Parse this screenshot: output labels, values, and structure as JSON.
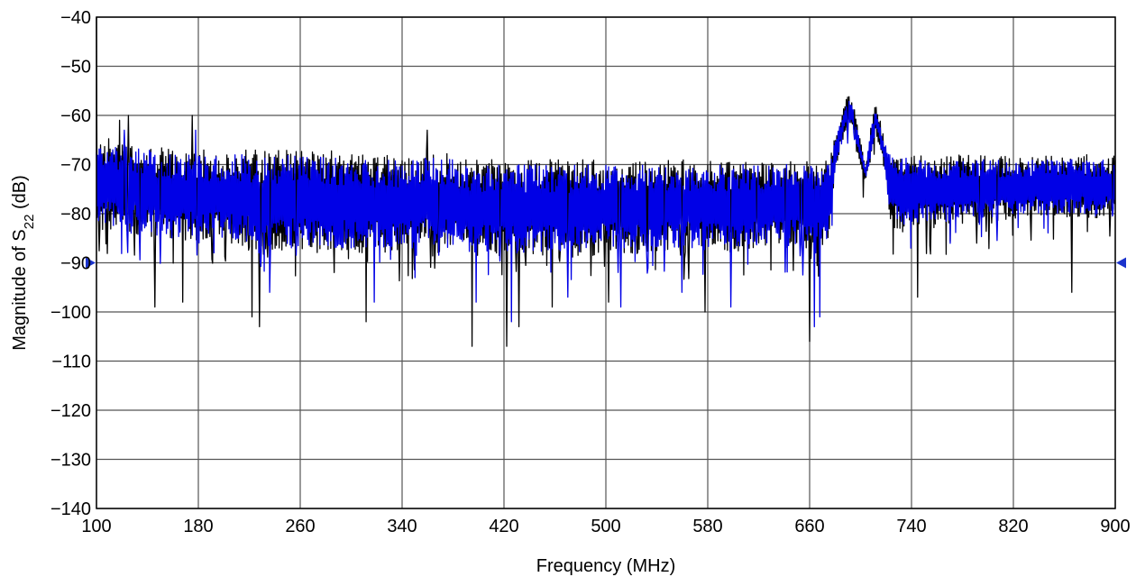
{
  "chart_data": {
    "type": "line",
    "title": "",
    "xlabel": "Frequency (MHz)",
    "ylabel": {
      "prefix": "Magnitude of S",
      "subscript": "22",
      "suffix": " (dB)"
    },
    "xlim": [
      100,
      900
    ],
    "ylim": [
      -140,
      -40
    ],
    "x_ticks": [
      100,
      180,
      260,
      340,
      420,
      500,
      580,
      660,
      740,
      820,
      900
    ],
    "x_tick_labels": [
      "100",
      "180",
      "260",
      "340",
      "420",
      "500",
      "580",
      "660",
      "740",
      "820",
      "900"
    ],
    "y_ticks": [
      -40,
      -50,
      -60,
      -70,
      -80,
      -90,
      -100,
      -110,
      -120,
      -130,
      -140
    ],
    "y_tick_labels": [
      "−40",
      "−50",
      "−60",
      "−70",
      "−80",
      "−90",
      "−100",
      "−110",
      "−120",
      "−130",
      "−140"
    ],
    "grid": true,
    "legend": "none",
    "reference_level": -90,
    "colors": {
      "front": "#0000e6",
      "back": "#000000",
      "grid": "#555555",
      "marker": "#1a33cc"
    },
    "series": [
      {
        "color": "#000000",
        "envelope": {
          "x": [
            100,
            120,
            140,
            160,
            180,
            200,
            220,
            240,
            260,
            280,
            300,
            320,
            340,
            360,
            380,
            400,
            420,
            440,
            460,
            480,
            500,
            520,
            540,
            560,
            580,
            600,
            620,
            640,
            660,
            675,
            680,
            686,
            690,
            694,
            700,
            704,
            708,
            712,
            718,
            722,
            726,
            730,
            740,
            760,
            780,
            800,
            820,
            840,
            860,
            880,
            900
          ],
          "upper": [
            -64,
            -65,
            -66,
            -67,
            -67,
            -67,
            -67,
            -67,
            -67,
            -67,
            -68,
            -68,
            -68,
            -67,
            -68,
            -69,
            -69,
            -69,
            -69,
            -69,
            -69,
            -69,
            -69,
            -69,
            -69,
            -69,
            -69,
            -69,
            -69,
            -69,
            -64,
            -59,
            -55,
            -57,
            -65,
            -70,
            -62,
            -57,
            -64,
            -66,
            -67,
            -67,
            -68,
            -68,
            -68,
            -68,
            -68,
            -68,
            -68,
            -68,
            -68
          ],
          "lower": [
            -83,
            -84,
            -85,
            -86,
            -86,
            -86,
            -87,
            -88,
            -88,
            -88,
            -88,
            -88,
            -88,
            -88,
            -88,
            -89,
            -89,
            -89,
            -89,
            -89,
            -88,
            -88,
            -88,
            -88,
            -88,
            -88,
            -87,
            -87,
            -88,
            -86,
            -72,
            -65,
            -62,
            -64,
            -70,
            -74,
            -70,
            -64,
            -70,
            -80,
            -83,
            -84,
            -83,
            -83,
            -82,
            -82,
            -81,
            -81,
            -81,
            -81,
            -81
          ],
          "spikes": [
            [
              100,
              -40
            ],
            [
              118,
              -61
            ],
            [
              125,
              -60
            ],
            [
              175,
              -60
            ],
            [
              360,
              -63
            ],
            [
              146,
              -99
            ],
            [
              168,
              -98
            ],
            [
              222,
              -101
            ],
            [
              228,
              -103
            ],
            [
              312,
              -102
            ],
            [
              395,
              -107
            ],
            [
              422,
              -107
            ],
            [
              432,
              -103
            ],
            [
              458,
              -99
            ],
            [
              502,
              -98
            ],
            [
              578,
              -100
            ],
            [
              660,
              -106
            ],
            [
              745,
              -97
            ],
            [
              866,
              -96
            ]
          ]
        }
      },
      {
        "color": "#0000e6",
        "envelope": {
          "x": [
            100,
            120,
            140,
            160,
            180,
            200,
            220,
            240,
            260,
            280,
            300,
            320,
            340,
            360,
            380,
            400,
            420,
            440,
            460,
            480,
            500,
            520,
            540,
            560,
            580,
            600,
            620,
            640,
            660,
            675,
            680,
            686,
            690,
            694,
            700,
            704,
            708,
            712,
            718,
            722,
            726,
            730,
            740,
            760,
            780,
            800,
            820,
            840,
            860,
            880,
            900
          ],
          "upper": [
            -65,
            -66,
            -67,
            -68,
            -68,
            -68,
            -68,
            -68,
            -68,
            -68,
            -69,
            -69,
            -69,
            -68,
            -69,
            -70,
            -70,
            -70,
            -70,
            -70,
            -70,
            -70,
            -70,
            -70,
            -70,
            -70,
            -70,
            -70,
            -70,
            -70,
            -65,
            -60,
            -56,
            -58,
            -66,
            -71,
            -63,
            -58,
            -65,
            -67,
            -68,
            -68,
            -69,
            -69,
            -69,
            -69,
            -69,
            -69,
            -69,
            -69,
            -69
          ],
          "lower": [
            -82,
            -83,
            -84,
            -85,
            -85,
            -85,
            -86,
            -87,
            -87,
            -87,
            -87,
            -87,
            -87,
            -87,
            -87,
            -88,
            -88,
            -88,
            -88,
            -88,
            -87,
            -87,
            -87,
            -87,
            -87,
            -87,
            -86,
            -86,
            -87,
            -85,
            -71,
            -64,
            -61,
            -63,
            -69,
            -73,
            -69,
            -63,
            -69,
            -79,
            -82,
            -83,
            -82,
            -82,
            -81,
            -81,
            -80,
            -80,
            -80,
            -80,
            -80
          ],
          "spikes": [
            [
              122,
              -63
            ],
            [
              178,
              -63
            ],
            [
              236,
              -96
            ],
            [
              318,
              -98
            ],
            [
              350,
              -93
            ],
            [
              398,
              -98
            ],
            [
              426,
              -102
            ],
            [
              470,
              -97
            ],
            [
              512,
              -99
            ],
            [
              560,
              -96
            ],
            [
              598,
              -99
            ],
            [
              664,
              -103
            ],
            [
              668,
              -101
            ]
          ]
        }
      }
    ]
  }
}
